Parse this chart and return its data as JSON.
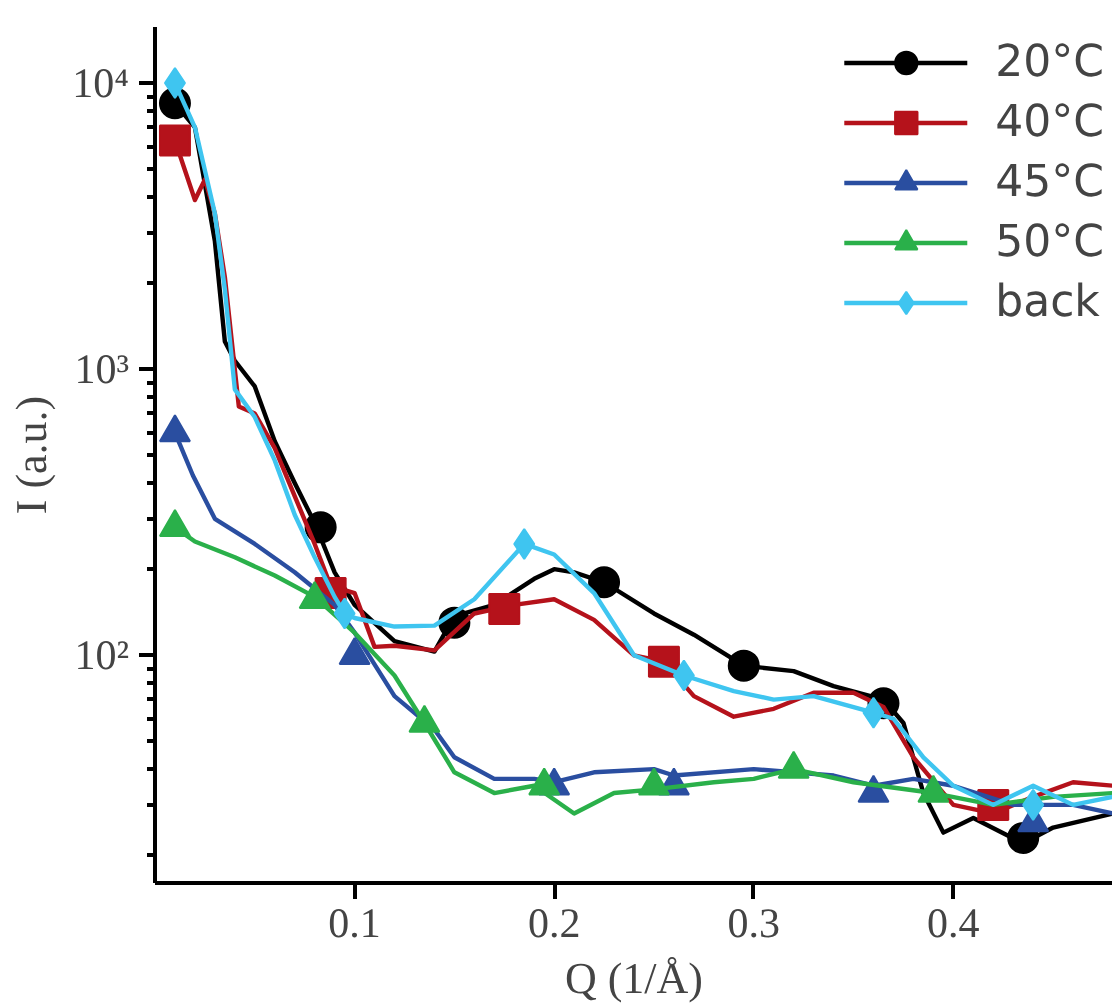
{
  "chart_data": {
    "type": "line",
    "xlabel": "Q (1/Å)",
    "ylabel": "I (a.u.)",
    "log": "y",
    "grid": false,
    "legend": "top right",
    "line_style": "solid",
    "xlim": [
      0,
      0.48
    ],
    "ylim": [
      16,
      15700
    ],
    "xticks": [
      0.1,
      0.2,
      0.3,
      0.4
    ],
    "yticks": [
      {
        "value": 100,
        "label": "10²"
      },
      {
        "value": 1000,
        "label": "10³"
      },
      {
        "value": 10000,
        "label": "10⁴"
      }
    ],
    "series": [
      {
        "name": "20°C",
        "color": "#000000",
        "x": [
          0.01,
          0.02,
          0.03,
          0.035,
          0.04,
          0.05,
          0.06,
          0.07,
          0.08,
          0.09,
          0.1,
          0.12,
          0.14,
          0.15,
          0.17,
          0.19,
          0.2,
          0.21,
          0.225,
          0.25,
          0.27,
          0.295,
          0.32,
          0.34,
          0.365,
          0.375,
          0.385,
          0.395,
          0.41,
          0.435,
          0.45,
          0.48
        ],
        "values": [
          8500,
          7000,
          2800,
          1250,
          1070,
          870,
          560,
          400,
          290,
          195,
          150,
          112,
          103,
          137,
          150,
          185,
          200,
          195,
          180,
          140,
          118,
          92,
          88,
          78,
          70,
          58,
          33,
          24,
          27,
          22,
          25,
          28
        ]
      },
      {
        "type": "scatter",
        "color": "#000000",
        "marker": "circle",
        "x": [
          0.01,
          0.083,
          0.15,
          0.225,
          0.295,
          0.365,
          0.435
        ],
        "values": [
          8500,
          280,
          130,
          180,
          92,
          68,
          23
        ]
      },
      {
        "name": "40°C",
        "color": "#b5121b",
        "x": [
          0.01,
          0.02,
          0.025,
          0.03,
          0.035,
          0.042,
          0.05,
          0.06,
          0.07,
          0.08,
          0.088,
          0.1,
          0.11,
          0.12,
          0.14,
          0.16,
          0.18,
          0.2,
          0.22,
          0.24,
          0.255,
          0.27,
          0.29,
          0.31,
          0.33,
          0.35,
          0.365,
          0.38,
          0.4,
          0.42,
          0.44,
          0.46,
          0.48
        ],
        "values": [
          6300,
          3900,
          4600,
          3500,
          2100,
          740,
          700,
          530,
          360,
          245,
          175,
          165,
          107,
          108,
          104,
          140,
          150,
          157,
          133,
          100,
          95,
          72,
          61,
          65,
          74,
          74,
          66,
          44,
          30,
          28,
          32,
          36,
          35
        ]
      },
      {
        "type": "scatter",
        "color": "#b5121b",
        "marker": "square",
        "x": [
          0.01,
          0.088,
          0.175,
          0.255,
          0.42
        ],
        "values": [
          6300,
          165,
          145,
          95,
          30
        ]
      },
      {
        "name": "45°C",
        "color": "#2a4ea0",
        "x": [
          0.01,
          0.019,
          0.03,
          0.05,
          0.07,
          0.09,
          0.1,
          0.12,
          0.14,
          0.15,
          0.17,
          0.19,
          0.2,
          0.22,
          0.25,
          0.26,
          0.3,
          0.34,
          0.36,
          0.38,
          0.4,
          0.43,
          0.46,
          0.48
        ],
        "values": [
          600,
          425,
          300,
          245,
          195,
          150,
          120,
          72,
          55,
          44,
          37,
          37,
          36,
          39,
          40,
          38,
          40,
          38,
          35,
          37,
          35,
          30,
          30,
          28
        ]
      },
      {
        "type": "scatter",
        "color": "#2a4ea0",
        "marker": "triangle",
        "x": [
          0.01,
          0.1,
          0.2,
          0.26,
          0.36,
          0.44
        ],
        "values": [
          600,
          100,
          35,
          35,
          33,
          26
        ]
      },
      {
        "name": "50°C",
        "color": "#2ab04a",
        "x": [
          0.01,
          0.02,
          0.04,
          0.06,
          0.08,
          0.1,
          0.12,
          0.135,
          0.15,
          0.17,
          0.19,
          0.21,
          0.23,
          0.25,
          0.28,
          0.3,
          0.32,
          0.35,
          0.39,
          0.42,
          0.45,
          0.48
        ],
        "values": [
          280,
          250,
          220,
          190,
          160,
          120,
          85,
          58,
          39,
          33,
          35,
          28,
          33,
          34,
          36,
          37,
          40,
          36,
          33,
          30,
          32,
          33
        ]
      },
      {
        "type": "scatter",
        "color": "#2ab04a",
        "marker": "triangle",
        "x": [
          0.01,
          0.08,
          0.135,
          0.195,
          0.25,
          0.32,
          0.39
        ],
        "values": [
          280,
          157,
          58,
          35,
          35,
          40,
          33
        ]
      },
      {
        "name": "back",
        "color": "#3fc5f0",
        "x": [
          0.01,
          0.02,
          0.03,
          0.035,
          0.04,
          0.05,
          0.06,
          0.07,
          0.08,
          0.09,
          0.095,
          0.1,
          0.12,
          0.14,
          0.16,
          0.185,
          0.2,
          0.22,
          0.24,
          0.265,
          0.29,
          0.31,
          0.33,
          0.36,
          0.37,
          0.385,
          0.4,
          0.42,
          0.44,
          0.46,
          0.48
        ],
        "values": [
          10000,
          7000,
          3500,
          1900,
          850,
          680,
          480,
          310,
          220,
          160,
          140,
          135,
          126,
          127,
          157,
          245,
          225,
          165,
          100,
          85,
          75,
          70,
          72,
          63,
          60,
          44,
          35,
          30,
          35,
          30,
          32
        ]
      },
      {
        "type": "scatter",
        "color": "#3fc5f0",
        "marker": "diamond",
        "x": [
          0.01,
          0.095,
          0.185,
          0.265,
          0.36,
          0.44
        ],
        "values": [
          10000,
          140,
          245,
          85,
          63,
          30
        ]
      }
    ]
  }
}
